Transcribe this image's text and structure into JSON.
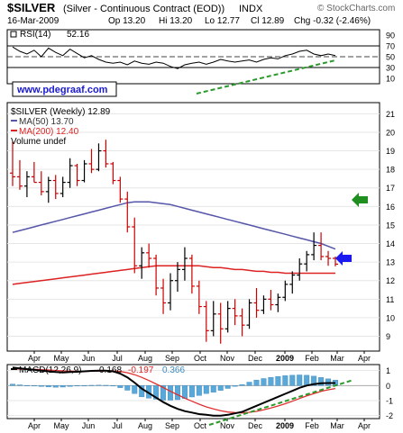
{
  "header": {
    "symbol": "$SILVER",
    "name": "(Silver - Continuous Contract (EOD))",
    "exchange": "INDX",
    "date": "16-Mar-2009",
    "op": "Op 13.20",
    "hi": "Hi 13.20",
    "lo": "Lo 12.77",
    "cl": "Cl 12.89",
    "chg": "Chg -0.32 (-2.46%)",
    "watermark": "© StockCharts.com",
    "website": "www.pdegraaf.com"
  },
  "colors": {
    "ma50": "#5555aa",
    "ma200": "#dd2222",
    "up_bar": "#000000",
    "down_bar": "#cc0000",
    "trend": "#2a9a2a",
    "arrow_green": "#1f8f1f",
    "arrow_blue": "#1a1af0",
    "macd_hist": "#5aa8d8",
    "macd_signal": "#e03030"
  },
  "chart_data": [
    {
      "type": "line",
      "title": "RSI(14) 52.16",
      "legend_label": "RSI(14)",
      "legend_value": "52.16",
      "yticks": [
        90,
        70,
        50,
        30,
        10
      ],
      "ylim": [
        0,
        100
      ],
      "reference_lines": [
        70,
        50,
        30
      ],
      "series": [
        {
          "values": [
            68,
            60,
            55,
            62,
            50,
            66,
            58,
            52,
            64,
            56,
            48,
            52,
            45,
            40,
            38,
            40,
            35,
            42,
            38,
            36,
            40,
            38,
            32,
            28,
            35,
            38,
            40,
            36,
            40,
            45,
            42,
            40,
            42,
            44,
            40,
            45,
            48,
            46,
            52,
            55,
            60,
            62,
            55,
            52,
            55,
            52
          ]
        }
      ]
    },
    {
      "type": "candlestick",
      "legend": [
        "$SILVER (Weekly) 12.89",
        "MA(50) 13.70",
        "MA(200) 12.40",
        "Volume undef"
      ],
      "yticks": [
        21,
        20,
        19,
        18,
        17,
        16,
        15,
        14,
        13,
        12,
        11,
        10,
        9
      ],
      "ylim": [
        8.2,
        21.6
      ],
      "xticks": [
        "Apr",
        "May",
        "Jun",
        "Jul",
        "Aug",
        "Sep",
        "Oct",
        "Nov",
        "Dec",
        "2009",
        "Feb",
        "Mar",
        "Apr"
      ],
      "ohlc": [
        [
          17.8,
          19.5,
          17.1,
          17.6
        ],
        [
          17.6,
          18.5,
          16.9,
          17.1
        ],
        [
          17.1,
          17.9,
          16.5,
          17.6
        ],
        [
          17.6,
          18.4,
          17.3,
          17.3
        ],
        [
          17.3,
          17.9,
          16.6,
          16.8
        ],
        [
          16.8,
          17.6,
          16.2,
          17.4
        ],
        [
          17.4,
          17.7,
          16.4,
          16.7
        ],
        [
          16.7,
          17.6,
          16.5,
          17.3
        ],
        [
          17.3,
          18.6,
          17.0,
          18.2
        ],
        [
          18.2,
          18.3,
          17.1,
          17.4
        ],
        [
          17.4,
          18.5,
          17.3,
          18.3
        ],
        [
          18.3,
          19.1,
          17.8,
          18.0
        ],
        [
          18.0,
          19.4,
          17.9,
          19.0
        ],
        [
          19.0,
          19.6,
          18.1,
          18.3
        ],
        [
          18.3,
          18.4,
          17.2,
          17.4
        ],
        [
          17.4,
          17.6,
          16.2,
          16.4
        ],
        [
          16.4,
          16.8,
          14.6,
          14.9
        ],
        [
          14.9,
          15.4,
          12.4,
          12.8
        ],
        [
          12.8,
          13.8,
          12.1,
          13.5
        ],
        [
          13.5,
          14.0,
          12.7,
          13.2
        ],
        [
          13.2,
          13.4,
          11.2,
          11.6
        ],
        [
          11.6,
          12.1,
          10.2,
          10.8
        ],
        [
          10.8,
          12.4,
          10.4,
          12.0
        ],
        [
          12.0,
          13.0,
          11.4,
          12.6
        ],
        [
          12.6,
          13.8,
          12.0,
          13.2
        ],
        [
          13.2,
          13.4,
          11.3,
          11.7
        ],
        [
          11.7,
          12.0,
          10.2,
          10.6
        ],
        [
          10.6,
          10.9,
          8.7,
          9.3
        ],
        [
          9.3,
          10.9,
          9.0,
          10.2
        ],
        [
          10.2,
          10.8,
          8.6,
          9.4
        ],
        [
          9.4,
          10.9,
          9.2,
          10.5
        ],
        [
          10.5,
          11.0,
          9.6,
          10.1
        ],
        [
          10.1,
          10.5,
          9.0,
          9.6
        ],
        [
          9.6,
          11.0,
          9.4,
          10.8
        ],
        [
          10.8,
          11.6,
          10.0,
          10.4
        ],
        [
          10.4,
          11.2,
          10.2,
          11.0
        ],
        [
          11.0,
          11.5,
          10.4,
          10.7
        ],
        [
          10.7,
          11.3,
          10.3,
          11.1
        ],
        [
          11.1,
          12.0,
          10.9,
          11.8
        ],
        [
          11.8,
          12.5,
          11.3,
          12.3
        ],
        [
          12.3,
          13.2,
          12.0,
          12.9
        ],
        [
          12.9,
          13.6,
          12.5,
          13.4
        ],
        [
          13.4,
          14.6,
          13.1,
          13.9
        ],
        [
          13.9,
          14.6,
          13.1,
          13.3
        ],
        [
          13.3,
          13.6,
          12.8,
          13.2
        ],
        [
          13.2,
          13.3,
          12.77,
          12.89
        ]
      ],
      "ma50": [
        14.6,
        14.7,
        14.8,
        14.9,
        15.0,
        15.1,
        15.2,
        15.3,
        15.4,
        15.5,
        15.6,
        15.7,
        15.8,
        15.9,
        16.0,
        16.1,
        16.2,
        16.25,
        16.25,
        16.25,
        16.2,
        16.15,
        16.1,
        16.0,
        15.9,
        15.8,
        15.7,
        15.6,
        15.5,
        15.4,
        15.3,
        15.2,
        15.1,
        15.0,
        14.9,
        14.8,
        14.7,
        14.6,
        14.5,
        14.4,
        14.3,
        14.2,
        14.1,
        14.0,
        13.85,
        13.7
      ],
      "ma200": [
        11.8,
        11.85,
        11.9,
        11.95,
        12.0,
        12.05,
        12.1,
        12.15,
        12.2,
        12.25,
        12.3,
        12.35,
        12.4,
        12.45,
        12.5,
        12.55,
        12.6,
        12.65,
        12.7,
        12.75,
        12.8,
        12.8,
        12.8,
        12.8,
        12.8,
        12.8,
        12.8,
        12.75,
        12.7,
        12.7,
        12.65,
        12.6,
        12.6,
        12.55,
        12.5,
        12.5,
        12.45,
        12.45,
        12.4,
        12.4,
        12.4,
        12.4,
        12.4,
        12.4,
        12.4,
        12.4
      ]
    },
    {
      "type": "line",
      "legend_label": "MACD(12,26,9)",
      "legend_values": [
        "0.168",
        "-0.197",
        "0.366"
      ],
      "yticks": [
        1,
        0,
        -1,
        -2
      ],
      "ylim": [
        -2.2,
        1.4
      ],
      "xticks": [
        "Apr",
        "May",
        "Jun",
        "Jul",
        "Aug",
        "Sep",
        "Oct",
        "Nov",
        "Dec",
        "2009",
        "Feb",
        "Mar",
        "Apr"
      ],
      "macd": [
        1.2,
        1.15,
        1.1,
        1.05,
        1.0,
        0.95,
        0.9,
        0.88,
        0.9,
        0.92,
        0.95,
        0.98,
        1.0,
        1.0,
        0.95,
        0.8,
        0.55,
        0.2,
        -0.2,
        -0.5,
        -0.8,
        -1.1,
        -1.35,
        -1.55,
        -1.7,
        -1.8,
        -1.9,
        -1.95,
        -2.0,
        -2.0,
        -1.95,
        -1.85,
        -1.75,
        -1.55,
        -1.35,
        -1.15,
        -0.95,
        -0.75,
        -0.55,
        -0.35,
        -0.15,
        0.0,
        0.1,
        0.15,
        0.17,
        0.168
      ],
      "signal": [
        1.1,
        1.1,
        1.09,
        1.08,
        1.06,
        1.04,
        1.01,
        0.98,
        0.96,
        0.95,
        0.95,
        0.96,
        0.97,
        0.98,
        0.98,
        0.94,
        0.86,
        0.73,
        0.55,
        0.34,
        0.11,
        -0.13,
        -0.38,
        -0.61,
        -0.84,
        -1.04,
        -1.24,
        -1.42,
        -1.56,
        -1.68,
        -1.76,
        -1.8,
        -1.82,
        -1.78,
        -1.72,
        -1.62,
        -1.5,
        -1.36,
        -1.21,
        -1.04,
        -0.86,
        -0.69,
        -0.53,
        -0.39,
        -0.28,
        -0.197
      ],
      "histogram": [
        0.1,
        0.05,
        0.01,
        -0.03,
        -0.06,
        -0.09,
        -0.11,
        -0.1,
        -0.06,
        -0.03,
        0.0,
        0.02,
        0.03,
        0.02,
        -0.03,
        -0.14,
        -0.31,
        -0.53,
        -0.75,
        -0.84,
        -0.91,
        -0.97,
        -0.97,
        -0.94,
        -0.86,
        -0.76,
        -0.66,
        -0.53,
        -0.44,
        -0.32,
        -0.19,
        -0.05,
        0.07,
        0.23,
        0.37,
        0.47,
        0.55,
        0.61,
        0.66,
        0.69,
        0.71,
        0.69,
        0.63,
        0.54,
        0.45,
        0.366
      ]
    }
  ]
}
